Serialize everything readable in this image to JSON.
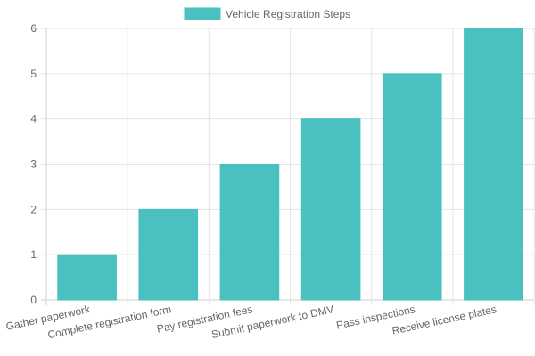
{
  "colors": {
    "bar_fill": "#4bc0c0",
    "bar_stroke": "#4bc0c0",
    "grid": "#e5e5e5",
    "axis": "#d0d0d0",
    "text": "#666666"
  },
  "chart_data": {
    "type": "bar",
    "legend": {
      "label": "Vehicle Registration Steps",
      "position": "top-center"
    },
    "categories": [
      "Gather paperwork",
      "Complete registration form",
      "Pay registration fees",
      "Submit paperwork to DMV",
      "Pass inspections",
      "Receive license plates"
    ],
    "series": [
      {
        "name": "Vehicle Registration Steps",
        "values": [
          1,
          2,
          3,
          4,
          5,
          6
        ]
      }
    ],
    "title": "",
    "xlabel": "",
    "ylabel": "",
    "ylim": [
      0,
      6
    ],
    "yticks": [
      0,
      1,
      2,
      3,
      4,
      5,
      6
    ],
    "grid": true
  }
}
